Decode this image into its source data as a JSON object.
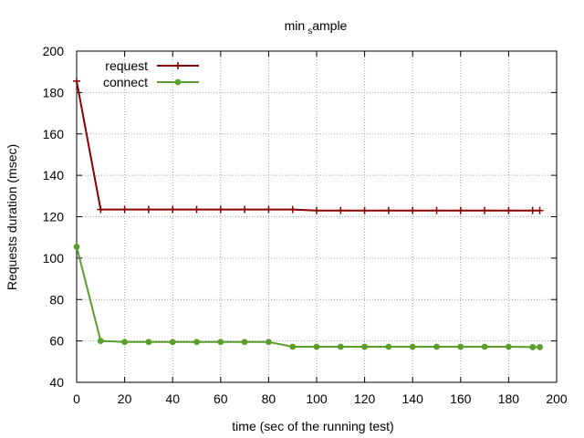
{
  "chart_data": {
    "type": "line",
    "title_main": "min",
    "title_sub": "s",
    "title_rest": "ample",
    "xlabel": "time (sec of the running test)",
    "ylabel": "Requests duration (msec)",
    "xlim": [
      0,
      200
    ],
    "ylim": [
      40,
      200
    ],
    "xticks": [
      0,
      20,
      40,
      60,
      80,
      100,
      120,
      140,
      160,
      180,
      200
    ],
    "yticks": [
      40,
      60,
      80,
      100,
      120,
      140,
      160,
      180,
      200
    ],
    "grid": true,
    "legend_position": "top-left",
    "series": [
      {
        "name": "request",
        "color": "#8b0000",
        "marker": "plus",
        "x": [
          0,
          10,
          20,
          30,
          40,
          50,
          60,
          70,
          80,
          90,
          100,
          110,
          120,
          130,
          140,
          150,
          160,
          170,
          180,
          190,
          193
        ],
        "y": [
          185.5,
          123.5,
          123.5,
          123.5,
          123.5,
          123.5,
          123.5,
          123.5,
          123.5,
          123.5,
          123,
          123,
          123,
          123,
          123,
          123,
          123,
          123,
          123,
          123,
          123
        ]
      },
      {
        "name": "connect",
        "color": "#5a9e2e",
        "marker": "dot",
        "x": [
          0,
          10,
          20,
          30,
          40,
          50,
          60,
          70,
          80,
          90,
          100,
          110,
          120,
          130,
          140,
          150,
          160,
          170,
          180,
          190,
          193
        ],
        "y": [
          105.5,
          60,
          59.5,
          59.5,
          59.5,
          59.5,
          59.5,
          59.5,
          59.5,
          57.2,
          57.2,
          57.2,
          57.2,
          57.2,
          57.2,
          57.2,
          57.2,
          57.2,
          57.2,
          57,
          57
        ]
      }
    ]
  }
}
